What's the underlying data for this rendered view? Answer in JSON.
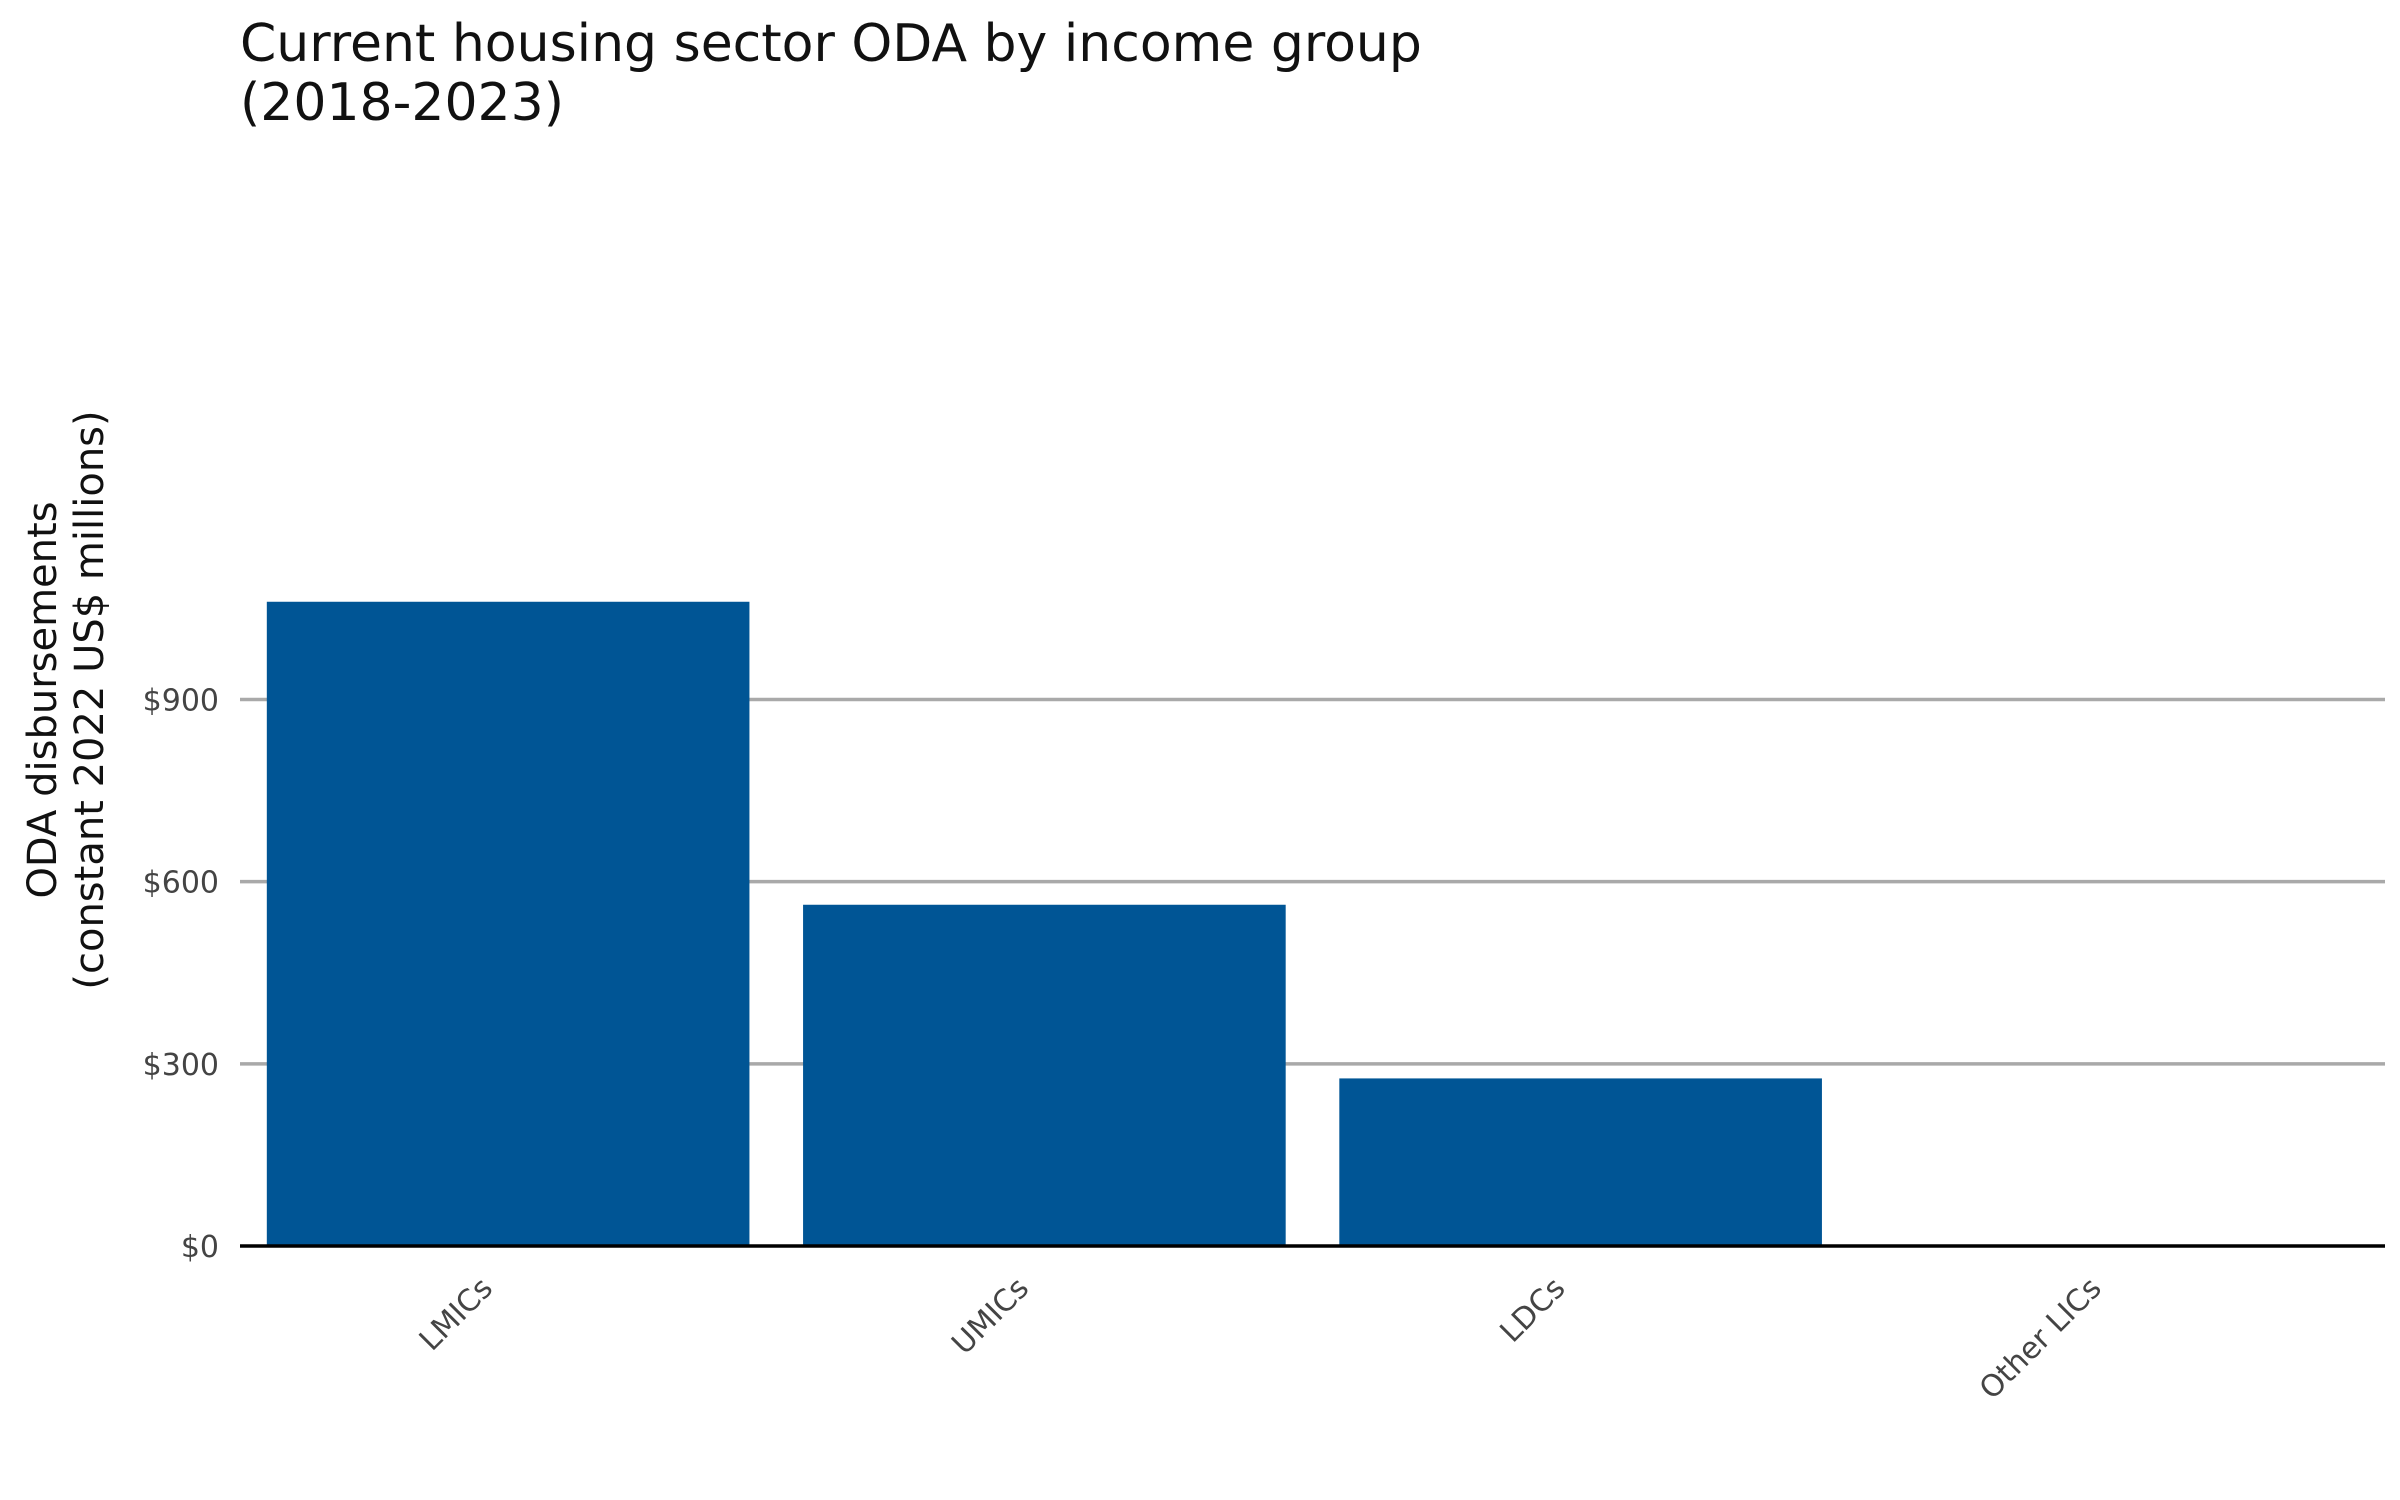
{
  "chart_data": {
    "type": "bar",
    "title_lines": [
      "Current housing sector ODA by income group",
      "(2018-2023)"
    ],
    "ylabel_lines": [
      "ODA disbursements",
      "(constant 2022 US$ millions)"
    ],
    "xlabel": "",
    "categories": [
      "LMICs",
      "UMICs",
      "LDCs",
      "Other LICs"
    ],
    "values": [
      1061,
      562,
      276,
      2
    ],
    "ylim": [
      0,
      1100
    ],
    "yticks": [
      0,
      300,
      600,
      900
    ],
    "ytick_labels": [
      "$0",
      "$300",
      "$600",
      "$900"
    ],
    "grid": "horizontal",
    "legend": "none",
    "bar_color": "#005595",
    "grid_color": "#a9a9a9",
    "axis_color": "#000000"
  }
}
